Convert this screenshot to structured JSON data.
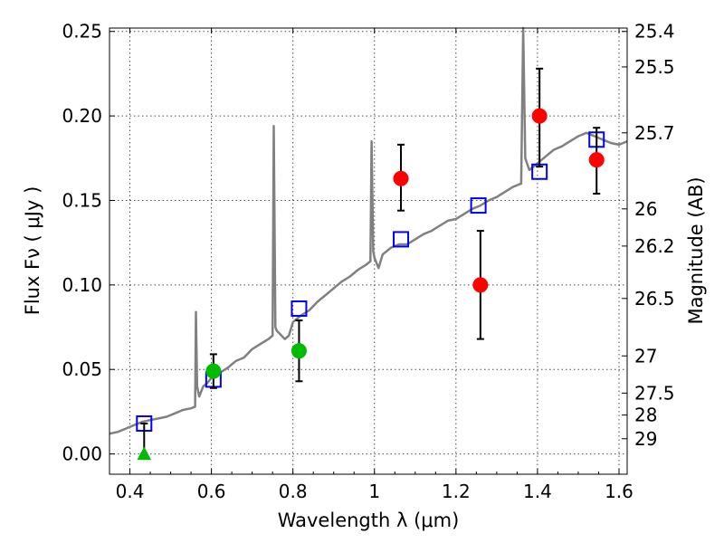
{
  "chart_data": {
    "type": "scatter",
    "title": "",
    "xlabel": "Wavelength  λ (μm)",
    "ylabel": "Flux  Fν  ( μJy )",
    "ylabel_right": "Magnitude (AB)",
    "xlim": [
      0.35,
      1.62
    ],
    "ylim": [
      -0.012,
      0.252
    ],
    "grid": true,
    "x_ticks": [
      0.4,
      0.6,
      0.8,
      1.0,
      1.2,
      1.4,
      1.6
    ],
    "x_tick_labels": [
      "0.4",
      "0.6",
      "0.8",
      "1",
      "1.2",
      "1.4",
      "1.6"
    ],
    "y_ticks": [
      0.0,
      0.05,
      0.1,
      0.15,
      0.2,
      0.25
    ],
    "y_tick_labels": [
      "0.00",
      "0.05",
      "0.10",
      "0.15",
      "0.20",
      "0.25"
    ],
    "right_ticks": [
      {
        "flux": 0.25,
        "label": "25.4"
      },
      {
        "flux": 0.229,
        "label": "25.5"
      },
      {
        "flux": 0.19,
        "label": "25.7"
      },
      {
        "flux": 0.145,
        "label": "26"
      },
      {
        "flux": 0.123,
        "label": "26.2"
      },
      {
        "flux": 0.092,
        "label": "26.5"
      },
      {
        "flux": 0.058,
        "label": "27"
      },
      {
        "flux": 0.036,
        "label": "27.5"
      },
      {
        "flux": 0.023,
        "label": "28"
      },
      {
        "flux": 0.009,
        "label": "29"
      }
    ],
    "series": [
      {
        "name": "template-spectrum",
        "kind": "line",
        "color": "#808080",
        "points": [
          [
            0.35,
            0.012
          ],
          [
            0.37,
            0.013
          ],
          [
            0.39,
            0.015
          ],
          [
            0.41,
            0.017
          ],
          [
            0.43,
            0.019
          ],
          [
            0.45,
            0.02
          ],
          [
            0.47,
            0.021
          ],
          [
            0.49,
            0.022
          ],
          [
            0.51,
            0.024
          ],
          [
            0.53,
            0.026
          ],
          [
            0.55,
            0.027
          ],
          [
            0.56,
            0.028
          ],
          [
            0.562,
            0.084
          ],
          [
            0.565,
            0.04
          ],
          [
            0.57,
            0.034
          ],
          [
            0.58,
            0.04
          ],
          [
            0.59,
            0.042
          ],
          [
            0.6,
            0.045
          ],
          [
            0.62,
            0.048
          ],
          [
            0.64,
            0.051
          ],
          [
            0.66,
            0.055
          ],
          [
            0.68,
            0.057
          ],
          [
            0.7,
            0.062
          ],
          [
            0.72,
            0.065
          ],
          [
            0.74,
            0.068
          ],
          [
            0.75,
            0.07
          ],
          [
            0.753,
            0.194
          ],
          [
            0.757,
            0.075
          ],
          [
            0.76,
            0.073
          ],
          [
            0.78,
            0.068
          ],
          [
            0.79,
            0.07
          ],
          [
            0.8,
            0.078
          ],
          [
            0.82,
            0.082
          ],
          [
            0.84,
            0.085
          ],
          [
            0.86,
            0.09
          ],
          [
            0.88,
            0.094
          ],
          [
            0.9,
            0.098
          ],
          [
            0.92,
            0.102
          ],
          [
            0.94,
            0.105
          ],
          [
            0.96,
            0.109
          ],
          [
            0.98,
            0.112
          ],
          [
            0.99,
            0.114
          ],
          [
            0.993,
            0.185
          ],
          [
            0.997,
            0.12
          ],
          [
            1.0,
            0.116
          ],
          [
            1.01,
            0.11
          ],
          [
            1.02,
            0.118
          ],
          [
            1.04,
            0.122
          ],
          [
            1.06,
            0.124
          ],
          [
            1.08,
            0.124
          ],
          [
            1.1,
            0.127
          ],
          [
            1.12,
            0.13
          ],
          [
            1.14,
            0.132
          ],
          [
            1.16,
            0.135
          ],
          [
            1.18,
            0.138
          ],
          [
            1.2,
            0.139
          ],
          [
            1.22,
            0.142
          ],
          [
            1.24,
            0.145
          ],
          [
            1.26,
            0.147
          ],
          [
            1.28,
            0.15
          ],
          [
            1.3,
            0.152
          ],
          [
            1.32,
            0.155
          ],
          [
            1.34,
            0.158
          ],
          [
            1.36,
            0.16
          ],
          [
            1.365,
            0.252
          ],
          [
            1.37,
            0.175
          ],
          [
            1.38,
            0.168
          ],
          [
            1.4,
            0.172
          ],
          [
            1.42,
            0.176
          ],
          [
            1.44,
            0.18
          ],
          [
            1.46,
            0.182
          ],
          [
            1.48,
            0.185
          ],
          [
            1.5,
            0.188
          ],
          [
            1.52,
            0.19
          ],
          [
            1.54,
            0.188
          ],
          [
            1.56,
            0.186
          ],
          [
            1.58,
            0.184
          ],
          [
            1.6,
            0.183
          ],
          [
            1.62,
            0.185
          ]
        ]
      },
      {
        "name": "model-photometry",
        "kind": "open-square",
        "color": "#0000ff",
        "points": [
          [
            0.435,
            0.018
          ],
          [
            0.605,
            0.044
          ],
          [
            0.815,
            0.086
          ],
          [
            1.065,
            0.127
          ],
          [
            1.255,
            0.147
          ],
          [
            1.405,
            0.167
          ],
          [
            1.545,
            0.186
          ]
        ]
      },
      {
        "name": "detections-red",
        "kind": "filled-circle",
        "color": "#ff0000",
        "points": [
          {
            "x": 1.065,
            "y": 0.163,
            "err": [
              0.144,
              0.183
            ]
          },
          {
            "x": 1.26,
            "y": 0.1,
            "err": [
              0.068,
              0.132
            ]
          },
          {
            "x": 1.405,
            "y": 0.2,
            "err": [
              0.17,
              0.228
            ]
          },
          {
            "x": 1.545,
            "y": 0.174,
            "err": [
              0.154,
              0.193
            ]
          }
        ]
      },
      {
        "name": "detections-green",
        "kind": "filled-circle",
        "color": "#00bb00",
        "points": [
          {
            "x": 0.605,
            "y": 0.049,
            "err": [
              0.039,
              0.059
            ]
          },
          {
            "x": 0.815,
            "y": 0.061,
            "err": [
              0.043,
              0.079
            ]
          }
        ]
      },
      {
        "name": "upper-limit-green",
        "kind": "filled-triangle",
        "color": "#00bb00",
        "points": [
          {
            "x": 0.435,
            "y": 0.0,
            "err": [
              0.0,
              0.018
            ]
          }
        ]
      }
    ]
  }
}
